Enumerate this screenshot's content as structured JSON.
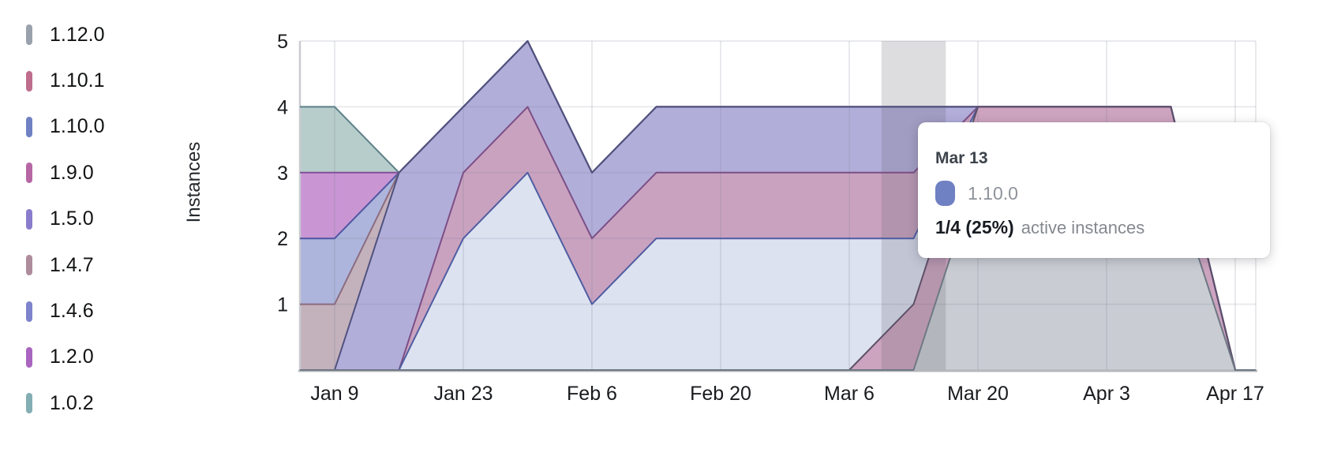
{
  "legend": {
    "items": [
      {
        "label": "1.12.0",
        "color": "#99a1ac"
      },
      {
        "label": "1.10.1",
        "color": "#bf6d8d"
      },
      {
        "label": "1.10.0",
        "color": "#6f81c2"
      },
      {
        "label": "1.9.0",
        "color": "#b766a4"
      },
      {
        "label": "1.5.0",
        "color": "#8a7ccd"
      },
      {
        "label": "1.4.7",
        "color": "#ae8c9c"
      },
      {
        "label": "1.4.6",
        "color": "#7e84cb"
      },
      {
        "label": "1.2.0",
        "color": "#a965bf"
      },
      {
        "label": "1.0.2",
        "color": "#83aeb4"
      }
    ]
  },
  "tooltip": {
    "date": "Mar 13",
    "series_label": "1.10.0",
    "swatch_color": "#6f81c2",
    "value_text": "1/4 (25%)",
    "suffix_text": "active instances"
  },
  "chart_data": {
    "type": "area",
    "stacked": true,
    "title": "",
    "xlabel": "",
    "ylabel": "Instances",
    "ylim": [
      0,
      5
    ],
    "grid": true,
    "x_tick_labels": [
      "Jan 9",
      "Jan 23",
      "Feb 6",
      "Feb 20",
      "Mar 6",
      "Mar 20",
      "Apr 3",
      "Apr 17"
    ],
    "y_tick_labels": [
      "1",
      "2",
      "3",
      "4",
      "5"
    ],
    "x_dates": [
      "Jan 5",
      "Jan 9",
      "Jan 16",
      "Jan 23",
      "Jan 30",
      "Feb 6",
      "Feb 13",
      "Feb 20",
      "Feb 27",
      "Mar 6",
      "Mar 13",
      "Mar 20",
      "Mar 27",
      "Apr 3",
      "Apr 10",
      "Apr 17",
      "edge"
    ],
    "x_weeks_from_jan9": [
      -0.54,
      0,
      1,
      2,
      3,
      4,
      5,
      6,
      7,
      8,
      9,
      10,
      11,
      12,
      13,
      14,
      14.32
    ],
    "series_bottom_to_top": [
      {
        "name": "1.12.0",
        "values": [
          0,
          0,
          0,
          0,
          0,
          0,
          0,
          0,
          0,
          0,
          0,
          3,
          3,
          3,
          3,
          0,
          0
        ],
        "fill": "#c9cdd3",
        "line": "#6e7884"
      },
      {
        "name": "1.10.1",
        "values": [
          0,
          0,
          0,
          0,
          0,
          0,
          0,
          0,
          0,
          0,
          1,
          1,
          1,
          1,
          1,
          0,
          0
        ],
        "fill": "#cda4bf",
        "line": "#5e5069"
      },
      {
        "name": "1.10.0",
        "values": [
          0,
          0,
          0,
          2,
          3,
          1,
          2,
          2,
          2,
          2,
          1,
          0,
          0,
          0,
          0,
          0,
          0
        ],
        "fill": "#dde2f1",
        "line": "#4f5da1"
      },
      {
        "name": "1.9.0",
        "values": [
          0,
          0,
          0,
          1,
          1,
          1,
          1,
          1,
          1,
          1,
          1,
          0,
          0,
          0,
          0,
          0,
          0
        ],
        "fill": "#c9a2c0",
        "line": "#7c4f86"
      },
      {
        "name": "1.5.0",
        "values": [
          0,
          0,
          3,
          1,
          1,
          1,
          1,
          1,
          1,
          1,
          1,
          0,
          0,
          0,
          0,
          0,
          0
        ],
        "fill": "#b2aeda",
        "line": "#4f527e"
      },
      {
        "name": "1.4.7",
        "values": [
          1,
          1,
          0,
          0,
          0,
          0,
          0,
          0,
          0,
          0,
          0,
          0,
          0,
          0,
          0,
          0,
          0
        ],
        "fill": "#c3b1bc",
        "line": "#8c6c80"
      },
      {
        "name": "1.4.6",
        "values": [
          1,
          1,
          0,
          0,
          0,
          0,
          0,
          0,
          0,
          0,
          0,
          0,
          0,
          0,
          0,
          0,
          0
        ],
        "fill": "#adb5dc",
        "line": "#4f57a2"
      },
      {
        "name": "1.2.0",
        "values": [
          1,
          1,
          0,
          0,
          0,
          0,
          0,
          0,
          0,
          0,
          0,
          0,
          0,
          0,
          0,
          0,
          0
        ],
        "fill": "#c995d3",
        "line": "#84519b"
      },
      {
        "name": "1.0.2",
        "values": [
          1,
          1,
          0,
          0,
          0,
          0,
          0,
          0,
          0,
          0,
          0,
          0,
          0,
          0,
          0,
          0,
          0
        ],
        "fill": "#b7cdcb",
        "line": "#5d8088"
      }
    ],
    "hovered_point": {
      "date": "Mar 13",
      "week_index": 10,
      "series": "1.10.0",
      "value": 1,
      "total": 4,
      "percent": "25%"
    },
    "legend_position": "left"
  },
  "styles": {
    "grid_color": "rgba(120,125,140,0.16)",
    "axis_baseline_color": "#b4b7bb",
    "plot_left_border_color": "#c9cbd0",
    "highlight_band_color": "rgba(100,100,108,0.22)",
    "tick_text_color": "#191b1e"
  }
}
